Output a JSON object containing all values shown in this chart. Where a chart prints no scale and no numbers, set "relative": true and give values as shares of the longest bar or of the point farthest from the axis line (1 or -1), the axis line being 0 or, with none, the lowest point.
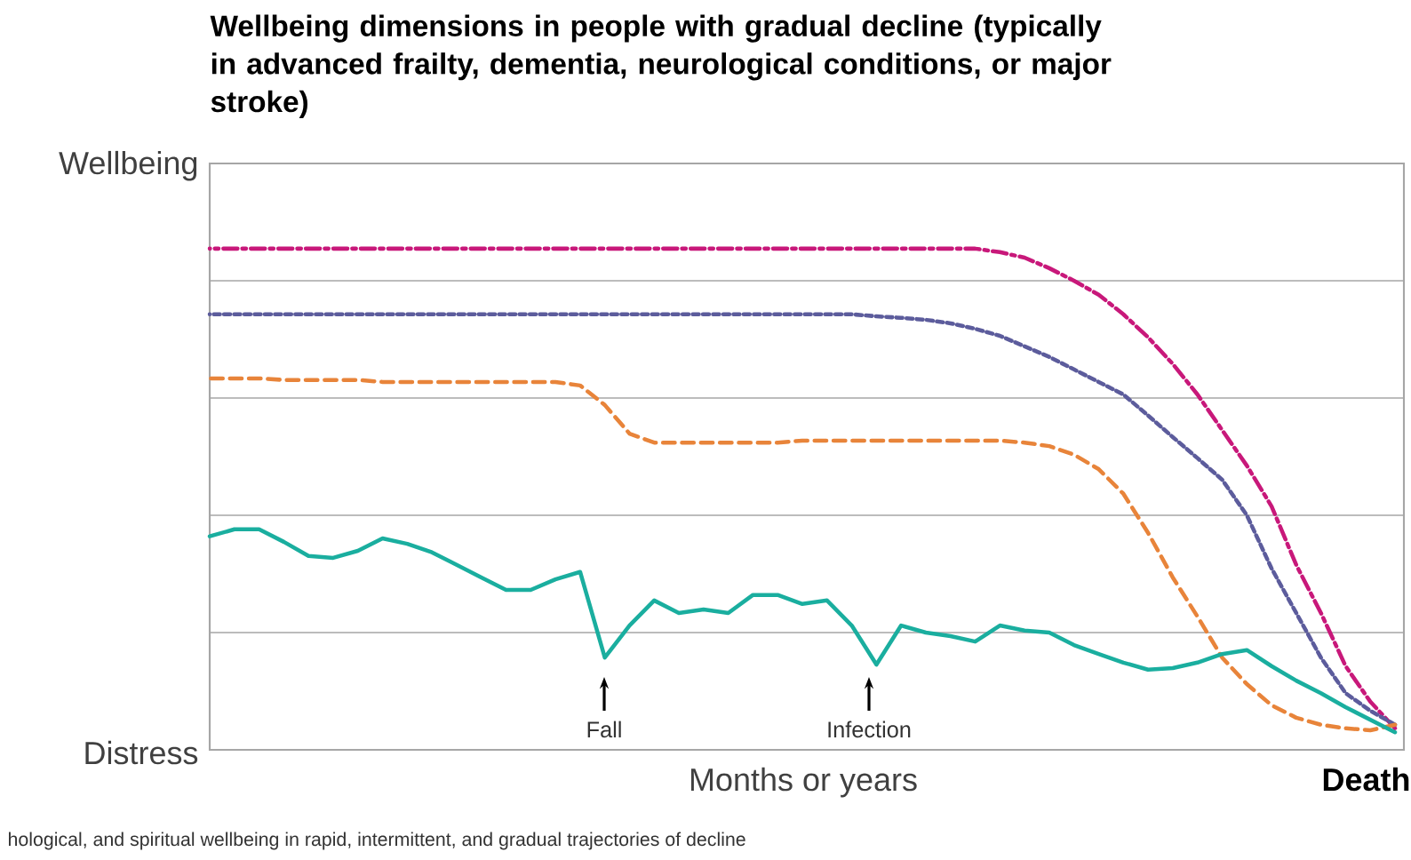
{
  "chart_data": {
    "type": "line",
    "title": "Wellbeing dimensions in people with gradual decline (typically in advanced frailty, dementia, neurological conditions, or major stroke)",
    "relative": true,
    "grid": "y",
    "categories": [
      null,
      null,
      null,
      null,
      null,
      null,
      null,
      null,
      null,
      null,
      null,
      null,
      null,
      null,
      null,
      null,
      null,
      null,
      null,
      null,
      null,
      null,
      null,
      null,
      null,
      null,
      null,
      null,
      null,
      null,
      null,
      null,
      null,
      null,
      null,
      null,
      null,
      null,
      null,
      null,
      null,
      null,
      null,
      null,
      null,
      null,
      null,
      null,
      null
    ],
    "series": [
      {
        "color": "#c8187a",
        "line_style": "dashdot",
        "values": [
          1.0,
          1.0,
          1.0,
          1.0,
          1.0,
          1.0,
          1.0,
          1.0,
          1.0,
          1.0,
          1.0,
          1.0,
          1.0,
          1.0,
          1.0,
          1.0,
          1.0,
          1.0,
          1.0,
          1.0,
          1.0,
          1.0,
          1.0,
          1.0,
          1.0,
          1.0,
          1.0,
          1.0,
          1.0,
          1.0,
          1.0,
          1.0,
          0.993,
          0.982,
          0.961,
          0.936,
          0.908,
          0.869,
          0.823,
          0.77,
          0.709,
          0.638,
          0.567,
          0.486,
          0.369,
          0.273,
          0.167,
          0.096,
          0.043
        ]
      },
      {
        "color": "#5c5c9c",
        "line_style": "dotted",
        "values": [
          0.869,
          0.869,
          0.869,
          0.869,
          0.869,
          0.869,
          0.869,
          0.869,
          0.869,
          0.869,
          0.869,
          0.869,
          0.869,
          0.869,
          0.869,
          0.869,
          0.869,
          0.869,
          0.869,
          0.869,
          0.869,
          0.869,
          0.869,
          0.869,
          0.869,
          0.869,
          0.869,
          0.865,
          0.862,
          0.858,
          0.851,
          0.84,
          0.826,
          0.805,
          0.784,
          0.759,
          0.734,
          0.709,
          0.667,
          0.624,
          0.582,
          0.539,
          0.468,
          0.362,
          0.273,
          0.184,
          0.113,
          0.078,
          0.05
        ]
      },
      {
        "color": "#e8843a",
        "line_style": "dashed",
        "values": [
          0.741,
          0.741,
          0.741,
          0.738,
          0.738,
          0.738,
          0.738,
          0.734,
          0.734,
          0.734,
          0.734,
          0.734,
          0.734,
          0.734,
          0.734,
          0.727,
          0.688,
          0.631,
          0.613,
          0.613,
          0.613,
          0.613,
          0.613,
          0.613,
          0.617,
          0.617,
          0.617,
          0.617,
          0.617,
          0.617,
          0.617,
          0.617,
          0.617,
          0.613,
          0.606,
          0.589,
          0.56,
          0.511,
          0.433,
          0.344,
          0.266,
          0.184,
          0.131,
          0.089,
          0.064,
          0.05,
          0.043,
          0.039,
          0.05
        ]
      },
      {
        "color": "#1aae9f",
        "line_style": "solid",
        "values": [
          0.426,
          0.44,
          0.44,
          0.415,
          0.387,
          0.383,
          0.397,
          0.422,
          0.411,
          0.394,
          0.369,
          0.344,
          0.319,
          0.319,
          0.34,
          0.355,
          0.184,
          0.248,
          0.298,
          0.273,
          0.28,
          0.273,
          0.309,
          0.309,
          0.291,
          0.298,
          0.248,
          0.17,
          0.248,
          0.234,
          0.227,
          0.216,
          0.248,
          0.238,
          0.234,
          0.209,
          0.191,
          0.174,
          0.16,
          0.163,
          0.174,
          0.191,
          0.199,
          0.167,
          0.138,
          0.113,
          0.085,
          0.06,
          0.035
        ]
      }
    ],
    "annotations": [
      "Wellbeing",
      "Distress",
      "Death",
      "Fall",
      "Infection",
      "hological, and spiritual wellbeing in rapid, intermittent, and gradual trajectories of decline",
      "Months or years"
    ]
  }
}
